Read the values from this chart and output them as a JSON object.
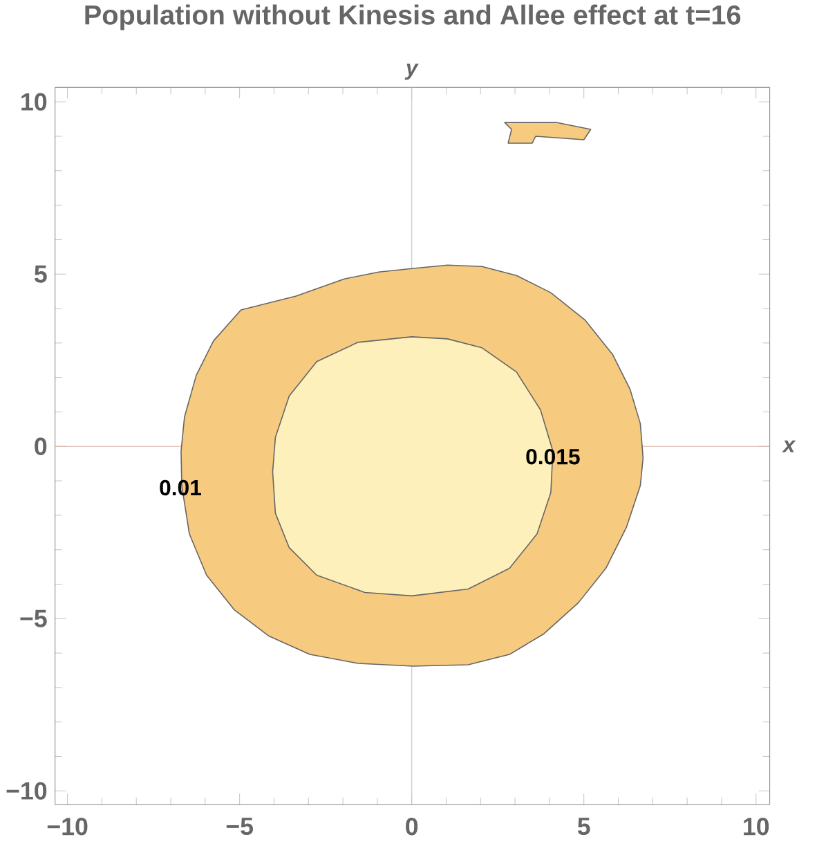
{
  "chart_data": {
    "type": "area",
    "title": "Population without Kinesis and Allee effect at t=16",
    "xlabel": "x",
    "ylabel": "y",
    "xlim": [
      -10.36,
      10.4
    ],
    "ylim": [
      -10.4,
      10.42
    ],
    "xticks": [
      {
        "value": -10,
        "label": "−10"
      },
      {
        "value": -5,
        "label": "−5"
      },
      0,
      5,
      10
    ],
    "yticks": [
      {
        "value": -10,
        "label": "−10"
      },
      {
        "value": -5,
        "label": "−5"
      },
      0,
      5,
      10
    ],
    "grid": false,
    "series": [
      {
        "color": "#f6ca7f",
        "x": [
          0,
          1.04,
          2.04,
          3.04,
          4.04,
          5.04,
          5.84,
          6.34,
          6.64,
          6.72,
          6.64,
          6.24,
          5.64,
          4.84,
          3.84,
          2.84,
          1.64,
          0.04,
          -1.56,
          -2.96,
          -4.16,
          -5.16,
          -5.96,
          -6.46,
          -6.68,
          -6.7,
          -6.6,
          -6.26,
          -5.76,
          -4.96,
          -3.36,
          -1.96,
          -0.96
        ],
        "values": [
          5.16,
          5.26,
          5.22,
          4.96,
          4.46,
          3.66,
          2.66,
          1.66,
          0.66,
          -0.34,
          -1.14,
          -2.34,
          -3.54,
          -4.54,
          -5.44,
          -6.04,
          -6.34,
          -6.38,
          -6.3,
          -6.04,
          -5.5,
          -4.74,
          -3.74,
          -2.54,
          -1.14,
          -0.14,
          0.86,
          2.06,
          3.06,
          3.96,
          4.36,
          4.86,
          5.06
        ]
      },
      {
        "color": "#fdf0bb",
        "x": [
          0,
          1.04,
          2.04,
          3.04,
          3.74,
          4.1,
          4.04,
          3.64,
          2.84,
          1.64,
          0,
          -1.36,
          -2.76,
          -3.56,
          -3.96,
          -4.04,
          -3.96,
          -3.56,
          -2.76,
          -1.56
        ],
        "values": [
          3.18,
          3.12,
          2.86,
          2.16,
          1.06,
          -0.14,
          -1.34,
          -2.54,
          -3.54,
          -4.14,
          -4.34,
          -4.24,
          -3.74,
          -2.94,
          -1.94,
          -0.74,
          0.26,
          1.46,
          2.46,
          3.02
        ]
      },
      {
        "color": "#f6ca7f",
        "x": [
          2.7,
          4.2,
          5.2,
          5.0,
          3.6,
          3.5,
          2.8,
          2.9
        ],
        "values": [
          9.4,
          9.4,
          9.2,
          8.9,
          9.0,
          8.8,
          8.8,
          9.2
        ]
      }
    ],
    "ref_lines": [
      {
        "axis": "x",
        "value": 0,
        "color": "#c8c8c8"
      },
      {
        "axis": "y",
        "value": 0,
        "color": "#dcb4a8"
      }
    ],
    "annotations": [
      {
        "text": "0.01",
        "x": -6.72,
        "y": -1.2
      },
      {
        "text": "0.015",
        "x": 4.1,
        "y": -0.3
      }
    ]
  }
}
